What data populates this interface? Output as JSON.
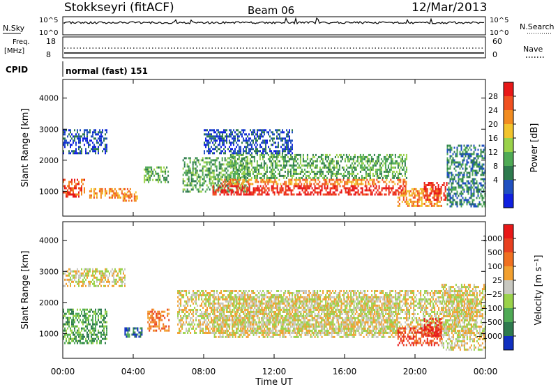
{
  "header": {
    "station": "Stokkseyri (fitACF)",
    "beam": "Beam 06",
    "date": "12/Mar/2013"
  },
  "meta_panels": {
    "nsky_label": "N.Sky",
    "nsky_ticks": [
      "10^5",
      "10^0"
    ],
    "nsearch_label": "N.Search",
    "nsearch_ticks": [
      "10^5",
      "10^0"
    ],
    "freq_label": "Freq.",
    "freq_unit": "[MHz]",
    "freq_ticks": [
      "18",
      "8"
    ],
    "nave_label": "Nave",
    "nave_ticks": [
      "60",
      "0"
    ],
    "cpid_label": "CPID",
    "cpid_value": "normal (fast) 151"
  },
  "chart_data": [
    {
      "type": "heatmap",
      "name": "power",
      "ylabel": "Slant Range [km]",
      "ylim": [
        200,
        4600
      ],
      "yticks": [
        1000,
        2000,
        3000,
        4000
      ],
      "xlim": [
        0,
        24
      ],
      "colorbar": {
        "label": "Power [dB]",
        "ticks": [
          "28",
          "24",
          "20",
          "16",
          "12",
          "8",
          "4"
        ],
        "colors": [
          "#1020e0",
          "#2050c0",
          "#2e7a4e",
          "#4faa55",
          "#9ad24a",
          "#f2c42c",
          "#f28c20",
          "#f05020",
          "#e81818"
        ]
      },
      "regions": [
        {
          "x": [
            0.0,
            1.2
          ],
          "y": [
            800,
            1400
          ],
          "level": 7
        },
        {
          "x": [
            0.0,
            2.5
          ],
          "y": [
            2200,
            3000
          ],
          "level": 1
        },
        {
          "x": [
            1.5,
            3.8
          ],
          "y": [
            800,
            1100
          ],
          "level": 6
        },
        {
          "x": [
            3.4,
            4.2
          ],
          "y": [
            700,
            1000
          ],
          "level": 6
        },
        {
          "x": [
            4.6,
            6.0
          ],
          "y": [
            1300,
            1800
          ],
          "level": 3
        },
        {
          "x": [
            6.8,
            10.5
          ],
          "y": [
            1000,
            2100
          ],
          "level": 3
        },
        {
          "x": [
            8.5,
            19.5
          ],
          "y": [
            900,
            1200
          ],
          "level": 8
        },
        {
          "x": [
            9.0,
            19.5
          ],
          "y": [
            1200,
            1400
          ],
          "level": 6
        },
        {
          "x": [
            9.5,
            19.5
          ],
          "y": [
            1400,
            2200
          ],
          "level": 3
        },
        {
          "x": [
            8.0,
            13.0
          ],
          "y": [
            2200,
            3000
          ],
          "level": 1
        },
        {
          "x": [
            19.0,
            21.5
          ],
          "y": [
            500,
            1100
          ],
          "level": 6
        },
        {
          "x": [
            20.5,
            21.8
          ],
          "y": [
            700,
            1300
          ],
          "level": 8
        },
        {
          "x": [
            21.8,
            24.0
          ],
          "y": [
            500,
            2500
          ],
          "level": 2
        }
      ]
    },
    {
      "type": "heatmap",
      "name": "velocity",
      "ylabel": "Slant Range [km]",
      "xlabel": "Time UT",
      "ylim": [
        200,
        4600
      ],
      "yticks": [
        1000,
        2000,
        3000,
        4000
      ],
      "xlim": [
        0,
        24
      ],
      "xticks": [
        "00:00",
        "04:00",
        "08:00",
        "12:00",
        "16:00",
        "20:00",
        "00:00"
      ],
      "colorbar": {
        "label": "Velocity [m s⁻¹]",
        "ticks": [
          "1000",
          "500",
          "100",
          "25",
          "−25",
          "−100",
          "−500",
          "−1000"
        ],
        "colors": [
          "#1030c0",
          "#2e7a4e",
          "#4faa55",
          "#9ad24a",
          "#c8c8c0",
          "#f2a030",
          "#f07020",
          "#e84020",
          "#e81818"
        ]
      },
      "regions": [
        {
          "x": [
            0.0,
            3.5
          ],
          "y": [
            2500,
            3100
          ],
          "level": 4
        },
        {
          "x": [
            0.0,
            2.5
          ],
          "y": [
            700,
            1800
          ],
          "level": 2
        },
        {
          "x": [
            3.5,
            4.5
          ],
          "y": [
            900,
            1200
          ],
          "level": 1
        },
        {
          "x": [
            4.8,
            6.0
          ],
          "y": [
            1100,
            1800
          ],
          "level": 6
        },
        {
          "x": [
            6.5,
            23.5
          ],
          "y": [
            1000,
            2400
          ],
          "level": 4
        },
        {
          "x": [
            8.5,
            19.0
          ],
          "y": [
            900,
            2200
          ],
          "level": 4
        },
        {
          "x": [
            19.0,
            21.5
          ],
          "y": [
            600,
            1200
          ],
          "level": 7
        },
        {
          "x": [
            20.5,
            21.5
          ],
          "y": [
            900,
            1500
          ],
          "level": 8
        },
        {
          "x": [
            21.5,
            24.0
          ],
          "y": [
            500,
            2600
          ],
          "level": 4
        }
      ]
    }
  ]
}
